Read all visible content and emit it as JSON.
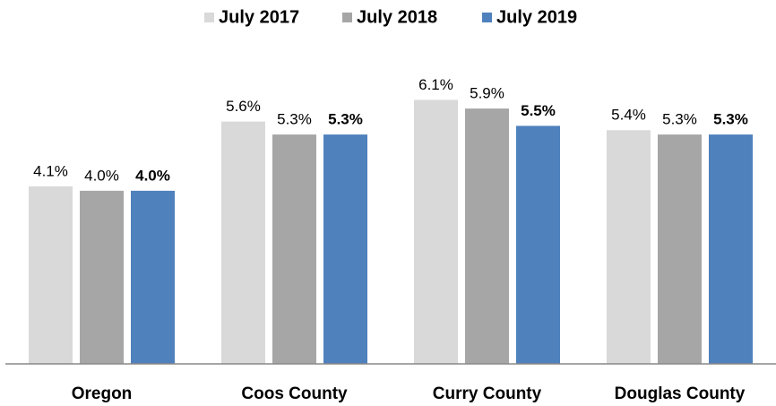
{
  "chart_data": {
    "type": "bar",
    "categories": [
      "Oregon",
      "Coos County",
      "Curry County",
      "Douglas County"
    ],
    "series": [
      {
        "name": "July 2017",
        "color": "#d9d9d9",
        "values": [
          4.1,
          5.6,
          6.1,
          5.4
        ],
        "value_labels": [
          "4.1%",
          "5.6%",
          "6.1%",
          "5.4%"
        ]
      },
      {
        "name": "July 2018",
        "color": "#a6a6a6",
        "values": [
          4.0,
          5.3,
          5.9,
          5.3
        ],
        "value_labels": [
          "4.0%",
          "5.3%",
          "5.9%",
          "5.3%"
        ]
      },
      {
        "name": "July 2019",
        "color": "#4f81bd",
        "values": [
          4.0,
          5.3,
          5.5,
          5.3
        ],
        "value_labels": [
          "4.0%",
          "5.3%",
          "5.5%",
          "5.3%"
        ]
      }
    ],
    "ylim": [
      0,
      7
    ]
  }
}
